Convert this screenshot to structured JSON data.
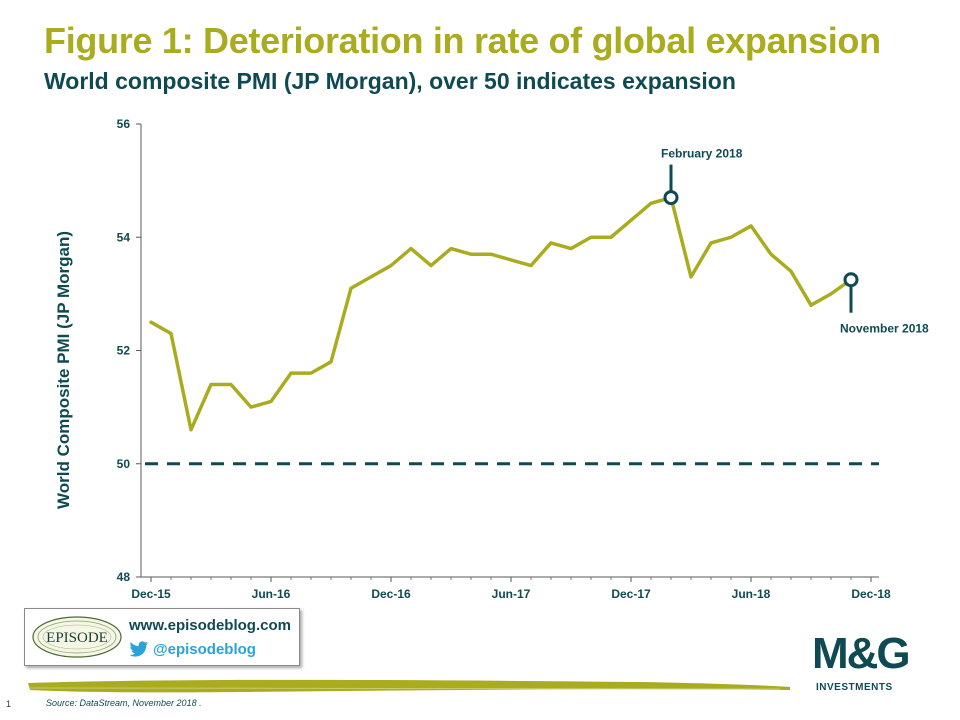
{
  "header": {
    "title": "Figure 1: Deterioration in rate of global expansion",
    "subtitle": "World composite PMI (JP Morgan), over 50 indicates expansion"
  },
  "chart_data": {
    "type": "line",
    "title": "Figure 1: Deterioration in rate of global expansion",
    "subtitle": "World composite PMI (JP Morgan), over 50 indicates expansion",
    "ylabel": "World Composite PMI (JP Morgan)",
    "xlabel": "",
    "ylim": [
      48,
      56
    ],
    "yticks": [
      48,
      50,
      52,
      54,
      56
    ],
    "xtick_labels": [
      "Dec-15",
      "Jun-16",
      "Dec-16",
      "Jun-17",
      "Dec-17",
      "Jun-18",
      "Dec-18"
    ],
    "x": [
      "Dec-15",
      "Jan-16",
      "Feb-16",
      "Mar-16",
      "Apr-16",
      "May-16",
      "Jun-16",
      "Jul-16",
      "Aug-16",
      "Sep-16",
      "Oct-16",
      "Nov-16",
      "Dec-16",
      "Jan-17",
      "Feb-17",
      "Mar-17",
      "Apr-17",
      "May-17",
      "Jun-17",
      "Jul-17",
      "Aug-17",
      "Sep-17",
      "Oct-17",
      "Nov-17",
      "Dec-17",
      "Jan-18",
      "Feb-18",
      "Mar-18",
      "Apr-18",
      "May-18",
      "Jun-18",
      "Jul-18",
      "Aug-18",
      "Sep-18",
      "Oct-18",
      "Nov-18"
    ],
    "series": [
      {
        "values": [
          52.5,
          52.3,
          50.6,
          51.4,
          51.4,
          51.0,
          51.1,
          51.6,
          51.6,
          51.8,
          53.1,
          53.3,
          53.5,
          53.8,
          53.5,
          53.8,
          53.7,
          53.7,
          53.6,
          53.5,
          53.9,
          53.8,
          54.0,
          54.0,
          54.3,
          54.6,
          54.7,
          53.3,
          53.9,
          54.0,
          54.2,
          53.7,
          53.4,
          52.8,
          53.0,
          53.25
        ],
        "color": "#a9ac1e"
      }
    ],
    "reference_line": {
      "y": 50,
      "style": "dashed",
      "color": "#0f4a52"
    },
    "annotations": [
      {
        "label": "February 2018",
        "x": "Feb-18",
        "y": 54.7,
        "placement": "above"
      },
      {
        "label": "November 2018",
        "x": "Nov-18",
        "y": 53.25,
        "placement": "below"
      }
    ],
    "grid": false,
    "legend": "none"
  },
  "footer": {
    "website": "www.episodeblog.com",
    "twitter": "@episodeblog",
    "badge_text": "EPISODE",
    "page_number": "1",
    "source": "Source: DataStream, November 2018 .",
    "brand_mark": "M&G",
    "brand_sub": "INVESTMENTS"
  },
  "colors": {
    "accent": "#a9ac1e",
    "dark": "#0f4a52",
    "twitter": "#2aa3d8"
  },
  "icons": [
    "twitter-icon",
    "episode-badge"
  ]
}
